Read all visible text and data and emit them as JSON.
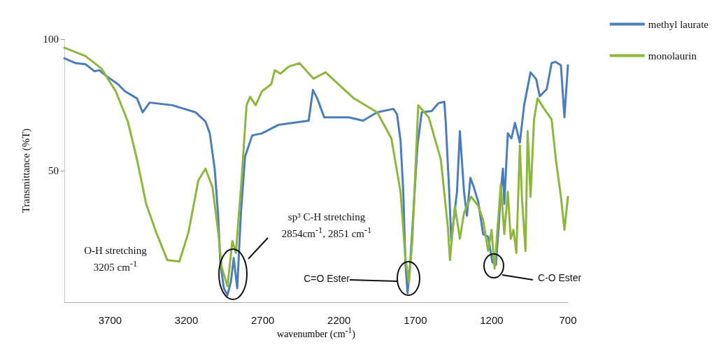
{
  "chart_data": {
    "type": "line",
    "xlabel": "wavenumber (cm$^{-1}$)",
    "ylabel": "Transmittance (%T)",
    "xlim": [
      4000,
      700
    ],
    "xticks": [
      3700,
      3200,
      2700,
      2200,
      1700,
      1200,
      700
    ],
    "ylim": [
      0,
      100
    ],
    "yticks": [
      50,
      100
    ],
    "grid": false,
    "legend": "top right",
    "marker": "none",
    "line_style": "solid",
    "series": [
      {
        "name": "methyl laurate",
        "color": "#4a7ebb",
        "x": [
          4000,
          3927,
          3862,
          3802,
          3771,
          3725,
          3649,
          3603,
          3524,
          3487,
          3441,
          3293,
          3140,
          3075,
          3047,
          3015,
          2992,
          2978,
          2955,
          2931,
          2908,
          2890,
          2867,
          2844,
          2816,
          2769,
          2705,
          2598,
          2399,
          2371,
          2343,
          2297,
          2135,
          2043,
          1950,
          1843,
          1820,
          1797,
          1779,
          1765,
          1751,
          1733,
          1686,
          1658,
          1593,
          1547,
          1510,
          1501,
          1478,
          1464,
          1427,
          1408,
          1381,
          1362,
          1339,
          1316,
          1288,
          1256,
          1223,
          1195,
          1172,
          1154,
          1140,
          1126,
          1117,
          1094,
          1070,
          1047,
          1015,
          987,
          945,
          908,
          885,
          839,
          807,
          783,
          746,
          723,
          700
        ],
        "values": [
          92.7,
          90.9,
          90.5,
          87.8,
          88.2,
          86,
          82.9,
          80.2,
          77.5,
          72.2,
          75.9,
          74.9,
          72.2,
          68.7,
          64.2,
          50.8,
          32.9,
          15.2,
          5.3,
          2.7,
          8,
          16.8,
          5.3,
          32.9,
          55.3,
          63.4,
          64.2,
          67.4,
          69,
          80.7,
          77.5,
          70.3,
          70.3,
          69,
          72.2,
          73.5,
          71.4,
          61.5,
          42,
          15.2,
          3.5,
          15.2,
          59.6,
          72.2,
          72.7,
          75.7,
          76.2,
          68.7,
          42,
          23.3,
          42,
          65,
          42,
          32.9,
          47.3,
          43.6,
          38.2,
          25.9,
          24.9,
          15.2,
          14.2,
          28.6,
          42,
          50.8,
          37.4,
          64.2,
          62.3,
          68.2,
          60.7,
          74.9,
          87.4,
          84.8,
          78.3,
          81,
          90.9,
          91.4,
          90.1,
          70.3,
          90.1
        ]
      },
      {
        "name": "monolaurin",
        "color": "#8db63c",
        "x": [
          4000,
          3862,
          3756,
          3663,
          3584,
          3524,
          3464,
          3399,
          3325,
          3246,
          3186,
          3122,
          3075,
          3029,
          2992,
          2969,
          2931,
          2899,
          2876,
          2839,
          2806,
          2783,
          2746,
          2705,
          2644,
          2621,
          2584,
          2529,
          2459,
          2367,
          2288,
          2103,
          1950,
          1857,
          1797,
          1765,
          1742,
          1719,
          1681,
          1612,
          1533,
          1487,
          1473,
          1441,
          1408,
          1381,
          1334,
          1288,
          1256,
          1223,
          1200,
          1181,
          1140,
          1117,
          1094,
          1075,
          1057,
          1038,
          1015,
          1001,
          978,
          964,
          945,
          922,
          899,
          862,
          830,
          807,
          779,
          746,
          723,
          700
        ],
        "values": [
          96.8,
          93.6,
          88.8,
          80.2,
          68.7,
          54.3,
          37.4,
          26.7,
          16,
          15.5,
          26.7,
          46.3,
          50.8,
          43.6,
          26.7,
          13.4,
          6.1,
          23.3,
          18.7,
          46.3,
          74.9,
          78.1,
          74.9,
          80.2,
          82.9,
          88.2,
          86.9,
          89.6,
          90.9,
          85,
          87.4,
          77.5,
          72.2,
          62.3,
          42,
          16.8,
          7.2,
          24.1,
          74.9,
          70.3,
          54.3,
          28.6,
          16,
          36.6,
          24.1,
          34,
          40.1,
          36.6,
          31.3,
          19.5,
          27.5,
          12.8,
          44.7,
          25.9,
          42,
          24.1,
          27.5,
          18.7,
          59.6,
          39.3,
          19.5,
          65,
          40.1,
          69.5,
          77.5,
          74.1,
          71.4,
          69.5,
          54.3,
          40.1,
          27.5,
          40.1
        ]
      }
    ],
    "annotations": [
      "O-H  stretching\n3205 cm$^{-1}$",
      "sp³ C-H  stretching\n2854cm$^{-1}$, 2851 cm$^{-1}$",
      "C=O  Ester",
      "C-O Ester"
    ]
  }
}
